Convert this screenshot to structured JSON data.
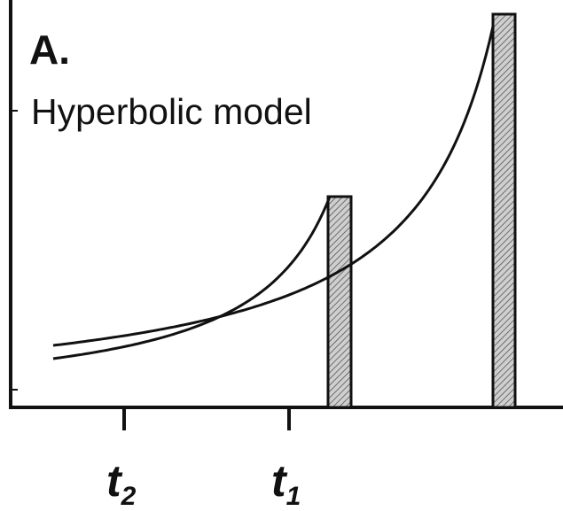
{
  "panel": "A.",
  "title": "Hyperbolic model",
  "x_ticks": [
    {
      "letter": "t",
      "subscript": "2"
    },
    {
      "letter": "t",
      "subscript": "1"
    }
  ]
}
